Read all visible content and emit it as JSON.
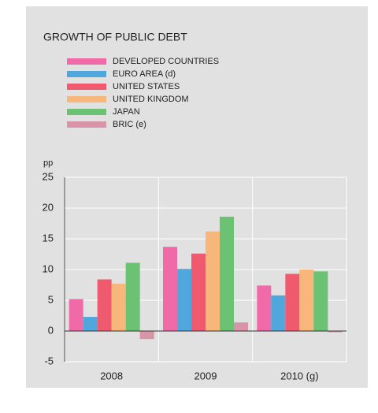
{
  "chart_data": {
    "type": "bar",
    "title": "GROWTH OF PUBLIC DEBT",
    "y_unit": "pp",
    "categories": [
      "2008",
      "2009",
      "2010 (g)"
    ],
    "series": [
      {
        "name": "DEVELOPED COUNTRIES",
        "color": "#f06aa8",
        "values": [
          5.2,
          13.7,
          7.4
        ]
      },
      {
        "name": "EURO AREA (d)",
        "color": "#4fa7dc",
        "values": [
          2.3,
          10.1,
          5.8
        ]
      },
      {
        "name": "UNITED STATES",
        "color": "#ef5a6e",
        "values": [
          8.4,
          12.6,
          9.3
        ]
      },
      {
        "name": "UNITED KINGDOM",
        "color": "#f8b77a",
        "values": [
          7.7,
          16.2,
          10.0
        ]
      },
      {
        "name": "JAPAN",
        "color": "#6cc273",
        "values": [
          11.1,
          18.6,
          9.7
        ]
      },
      {
        "name": "BRIC (e)",
        "color": "#d994a8",
        "values": [
          -1.3,
          1.4,
          -0.2
        ]
      }
    ],
    "ylim": [
      -5,
      25
    ],
    "yticks": [
      -5,
      0,
      5,
      10,
      15,
      20,
      25
    ],
    "grid": true
  }
}
